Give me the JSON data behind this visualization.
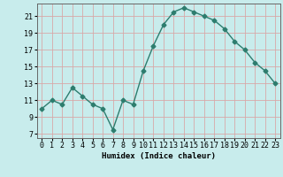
{
  "x": [
    0,
    1,
    2,
    3,
    4,
    5,
    6,
    7,
    8,
    9,
    10,
    11,
    12,
    13,
    14,
    15,
    16,
    17,
    18,
    19,
    20,
    21,
    22,
    23
  ],
  "y": [
    10,
    11,
    10.5,
    12.5,
    11.5,
    10.5,
    10,
    7.5,
    11,
    10.5,
    14.5,
    17.5,
    20,
    21.5,
    22,
    21.5,
    21,
    20.5,
    19.5,
    18,
    17,
    15.5,
    14.5,
    13
  ],
  "line_color": "#2d7d6e",
  "marker": "D",
  "marker_size": 2.5,
  "bg_color": "#c8ecec",
  "grid_color": "#d8a8a8",
  "xlabel": "Humidex (Indice chaleur)",
  "xlabel_fontsize": 6.5,
  "yticks": [
    7,
    9,
    11,
    13,
    15,
    17,
    19,
    21
  ],
  "ylim": [
    6.5,
    22.5
  ],
  "xlim": [
    -0.5,
    23.5
  ],
  "tick_fontsize": 6,
  "line_width": 1.0
}
